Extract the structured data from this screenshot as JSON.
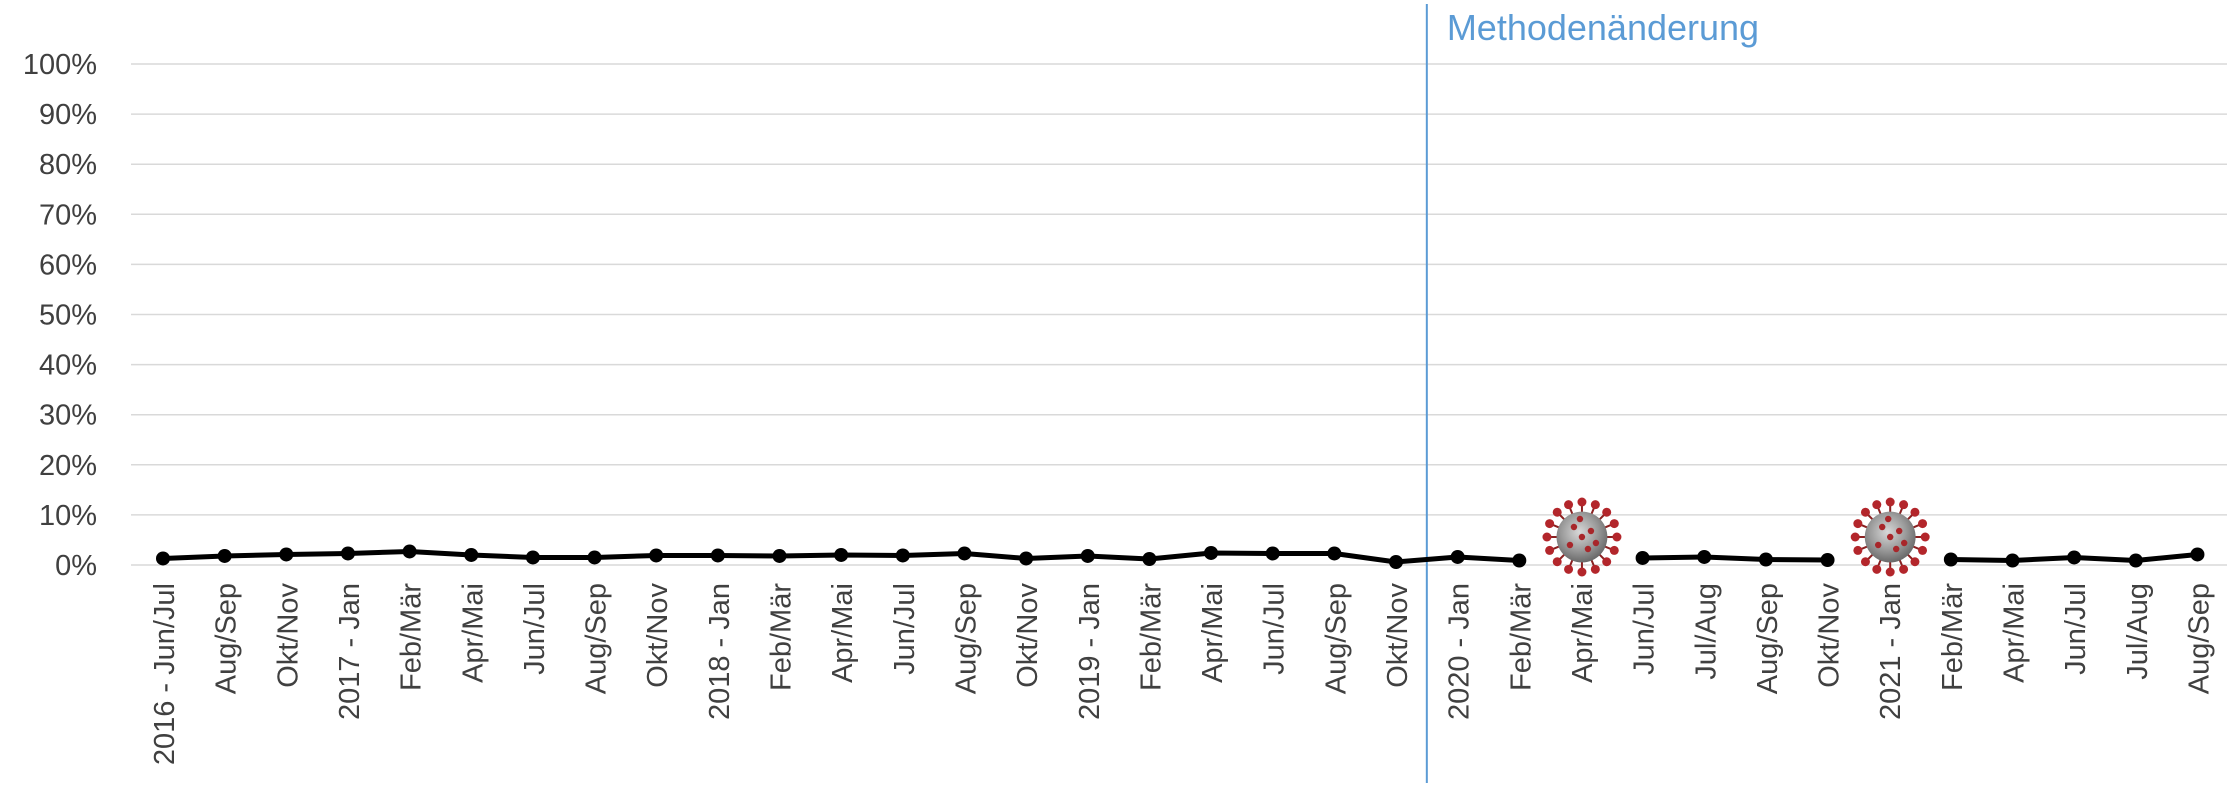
{
  "chart_data": {
    "type": "line",
    "ylim": [
      0,
      100
    ],
    "y_ticks": [
      "0%",
      "10%",
      "20%",
      "30%",
      "40%",
      "50%",
      "60%",
      "70%",
      "80%",
      "90%",
      "100%"
    ],
    "grid": true,
    "categories": [
      "2016 - Jun/Jul",
      "Aug/Sep",
      "Okt/Nov",
      "2017 - Jan",
      "Feb/Mär",
      "Apr/Mai",
      "Jun/Jul",
      "Aug/Sep",
      "Okt/Nov",
      "2018 - Jan",
      "Feb/Mär",
      "Apr/Mai",
      "Jun/Jul",
      "Aug/Sep",
      "Okt/Nov",
      "2019 - Jan",
      "Feb/Mär",
      "Apr/Mai",
      "Jun/Jul",
      "Aug/Sep",
      "Okt/Nov",
      "2020 - Jan",
      "Feb/Mär",
      "Apr/Mai",
      "Jun/Jul",
      "Jul/Aug",
      "Aug/Sep",
      "Okt/Nov",
      "2021 - Jan",
      "Feb/Mär",
      "Apr/Mai",
      "Jun/Jul",
      "Jul/Aug",
      "Aug/Sep"
    ],
    "series": [
      {
        "values": [
          1.3,
          1.8,
          2.1,
          2.3,
          2.7,
          2.0,
          1.5,
          1.5,
          1.9,
          1.9,
          1.8,
          2.0,
          1.9,
          2.3,
          1.3,
          1.8,
          1.2,
          2.4,
          2.3,
          2.3,
          0.6,
          1.6,
          0.9,
          null,
          1.4,
          1.6,
          1.1,
          1.0,
          null,
          1.1,
          0.9,
          1.5,
          0.9,
          2.1
        ],
        "color": "#000000"
      }
    ],
    "annotations": [
      {
        "text": "Methodenänderung",
        "type": "vertical-line",
        "between": [
          "Okt/Nov",
          "2020 - Jan"
        ],
        "color": "#5b9bd5"
      }
    ],
    "markers": [
      {
        "category": "Apr/Mai",
        "icon": "coronavirus-icon"
      },
      {
        "category": "2021 - Jan",
        "icon": "coronavirus-icon"
      }
    ]
  }
}
